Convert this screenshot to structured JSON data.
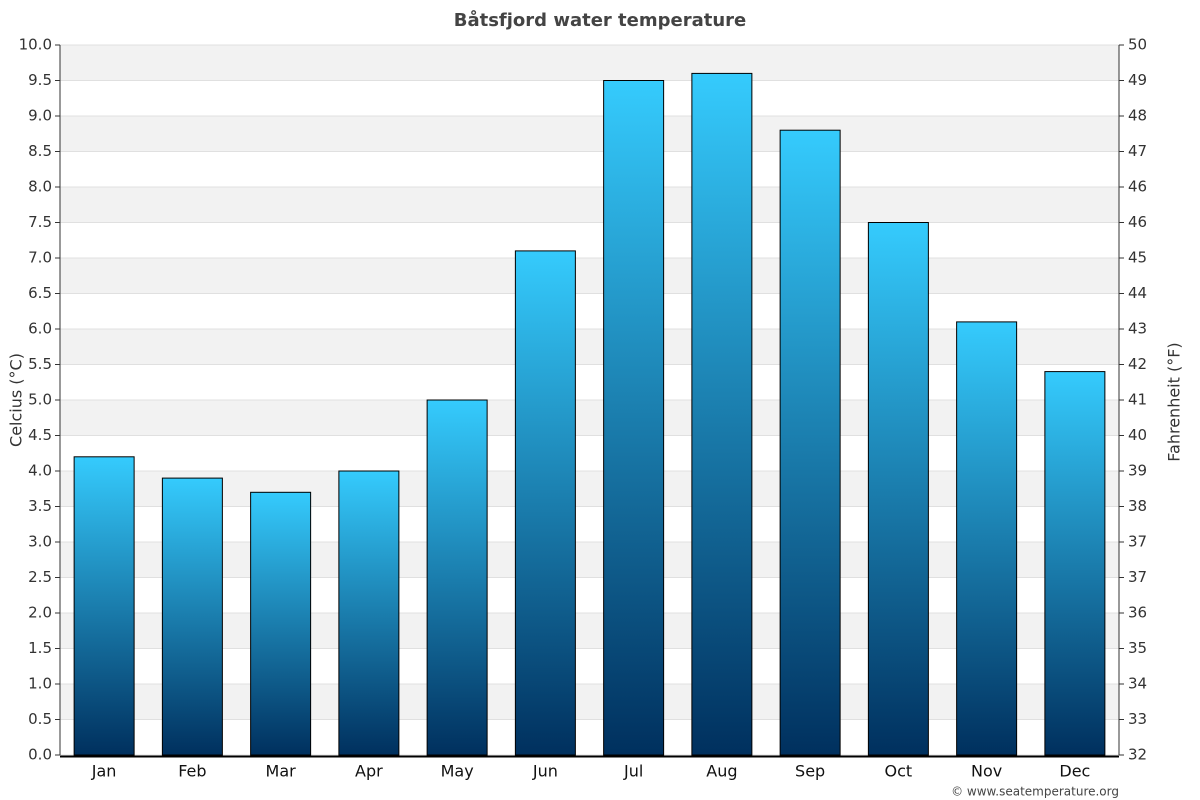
{
  "chart_data": {
    "type": "bar",
    "title": "Båtsfjord water temperature",
    "y_label": "Celcius (°C)",
    "y2_label": "Fahrenheit (°F)",
    "footer": "© www.seatemperature.org",
    "categories": [
      "Jan",
      "Feb",
      "Mar",
      "Apr",
      "May",
      "Jun",
      "Jul",
      "Aug",
      "Sep",
      "Oct",
      "Nov",
      "Dec"
    ],
    "values": [
      4.2,
      3.9,
      3.7,
      4.0,
      5.0,
      7.1,
      9.5,
      9.6,
      8.8,
      7.5,
      6.1,
      5.4
    ],
    "gradient": [
      "#35cbfd",
      "#00305e"
    ],
    "ylim": [
      0,
      10
    ],
    "yticks": [
      {
        "value": 0,
        "label": "0.0"
      },
      0.5,
      {
        "value": 1,
        "label": "1.0"
      },
      1.5,
      {
        "value": 2,
        "label": "2.0"
      },
      2.5,
      {
        "value": 3,
        "label": "3.0"
      },
      3.5,
      {
        "value": 4,
        "label": "4.0"
      },
      4.5,
      {
        "value": 5,
        "label": "5.0"
      },
      5.5,
      {
        "value": 6,
        "label": "6.0"
      },
      6.5,
      {
        "value": 7,
        "label": "7.0"
      },
      7.5,
      {
        "value": 8,
        "label": "8.0"
      },
      8.5,
      {
        "value": 9,
        "label": "9.0"
      },
      9.5,
      {
        "value": 10,
        "label": "10.0"
      }
    ],
    "y2lim": [
      32,
      50
    ],
    "y2ticks": [
      32,
      {
        "value": 32.9,
        "label": "33"
      },
      {
        "value": 33.8,
        "label": "34"
      },
      {
        "value": 34.7,
        "label": "35"
      },
      {
        "value": 35.6,
        "label": "36"
      },
      {
        "value": 36.5,
        "label": "37"
      },
      {
        "value": 37.4,
        "label": "37"
      },
      {
        "value": 38.3,
        "label": "38"
      },
      {
        "value": 39.2,
        "label": "39"
      },
      {
        "value": 40.1,
        "label": "40"
      },
      41,
      {
        "value": 41.9,
        "label": "42"
      },
      {
        "value": 42.8,
        "label": "43"
      },
      {
        "value": 43.7,
        "label": "44"
      },
      {
        "value": 44.6,
        "label": "45"
      },
      {
        "value": 45.5,
        "label": "46"
      },
      {
        "value": 46.4,
        "label": "46"
      },
      {
        "value": 47.3,
        "label": "47"
      },
      {
        "value": 48.2,
        "label": "48"
      },
      {
        "value": 49.1,
        "label": "49"
      },
      50
    ],
    "grid": true
  }
}
